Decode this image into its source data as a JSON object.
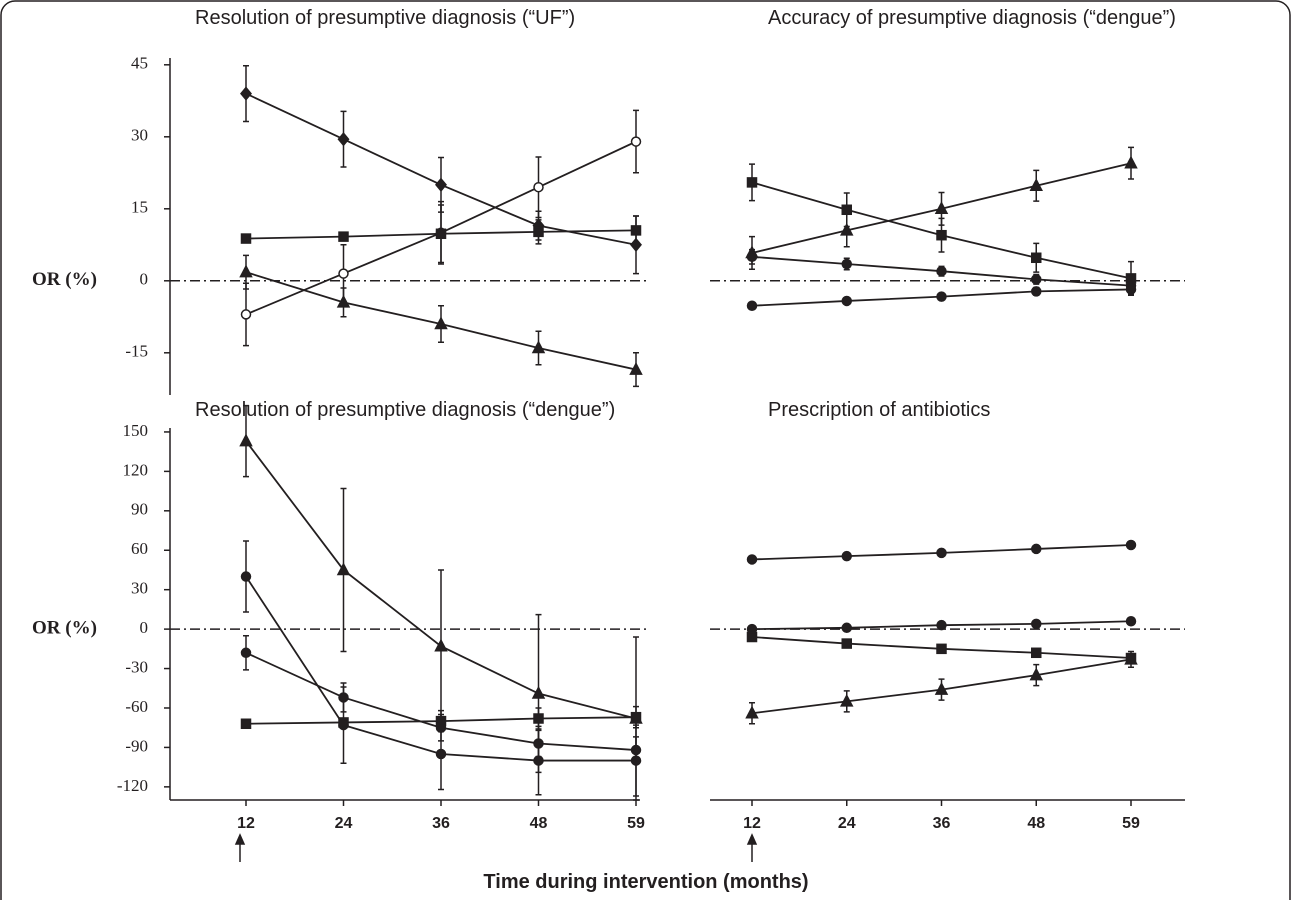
{
  "chart_data": [
    {
      "type": "line",
      "title": "Resolution of presumptive diagnosis (“UF”)",
      "ylabel": "OR (%)",
      "ylim": [
        -19,
        46
      ],
      "yticks": [
        -15,
        0,
        15,
        30,
        45
      ],
      "hline": 0,
      "series": [
        {
          "marker": "diamond",
          "color": "#231f20",
          "values": [
            39,
            29.5,
            20,
            11.5,
            7.5
          ],
          "errors": [
            5.8,
            5.8,
            5.7,
            3,
            6
          ]
        },
        {
          "marker": "circle-open",
          "color": "#231f20",
          "values": [
            -7,
            1.5,
            10,
            19.5,
            29
          ],
          "errors": [
            6.5,
            6,
            6.5,
            6.3,
            6.5
          ]
        },
        {
          "marker": "square",
          "color": "#231f20",
          "values": [
            8.8,
            9.2,
            9.8,
            10.2,
            10.5
          ],
          "errors": [
            0.5,
            0.5,
            6,
            2.5,
            3
          ]
        },
        {
          "marker": "triangle",
          "color": "#231f20",
          "values": [
            1.8,
            -4.5,
            -9,
            -14,
            -18.5
          ],
          "errors": [
            3.5,
            3,
            3.8,
            3.5,
            3.5
          ]
        }
      ]
    },
    {
      "type": "line",
      "title": "Accuracy of presumptive diagnosis (“dengue”)",
      "ylim": [
        -19,
        46
      ],
      "hline": 0,
      "series": [
        {
          "marker": "square",
          "color": "#231f20",
          "values": [
            20.5,
            14.8,
            9.5,
            4.8,
            0.5
          ],
          "errors": [
            3.8,
            3.5,
            3.5,
            3,
            3.5
          ]
        },
        {
          "marker": "triangle",
          "color": "#231f20",
          "values": [
            5.8,
            10.5,
            15,
            19.8,
            24.5
          ],
          "errors": [
            3.4,
            3.4,
            3.4,
            3.2,
            3.3
          ]
        },
        {
          "marker": "circle",
          "color": "#231f20",
          "values": [
            5,
            3.5,
            2,
            0.3,
            -1
          ],
          "errors": [
            1.5,
            1.2,
            1,
            1,
            1
          ]
        },
        {
          "marker": "circle",
          "color": "#231f20",
          "values": [
            -5.2,
            -4.2,
            -3.3,
            -2.2,
            -1.8
          ],
          "errors": [
            0.5,
            0.5,
            0.5,
            0.8,
            1
          ]
        }
      ]
    },
    {
      "type": "line",
      "title": "Resolution of presumptive diagnosis (“dengue”)",
      "ylabel": "OR (%)",
      "categories": [
        "12",
        "24",
        "36",
        "48",
        "59"
      ],
      "ylim": [
        -130,
        153
      ],
      "yticks": [
        -120,
        -90,
        -60,
        -30,
        0,
        30,
        60,
        90,
        120,
        150
      ],
      "hline": 0,
      "series": [
        {
          "marker": "triangle",
          "color": "#231f20",
          "values": [
            143,
            45,
            -13,
            -49,
            -68
          ],
          "errors": [
            27,
            62,
            58,
            60,
            62
          ]
        },
        {
          "marker": "circle",
          "color": "#231f20",
          "values": [
            40,
            -73,
            -95,
            -100,
            -100
          ],
          "errors": [
            27,
            29,
            27,
            26,
            27
          ]
        },
        {
          "marker": "circle",
          "color": "#231f20",
          "values": [
            -18,
            -52,
            -75,
            -87,
            -92
          ],
          "errors": [
            13,
            11,
            10,
            10,
            10
          ]
        },
        {
          "marker": "square",
          "color": "#231f20",
          "values": [
            -72,
            -71,
            -70,
            -68,
            -67
          ],
          "errors": [
            2,
            2,
            8,
            8,
            8
          ]
        }
      ]
    },
    {
      "type": "line",
      "title": "Prescription of  antibiotics",
      "categories": [
        "12",
        "24",
        "36",
        "48",
        "59"
      ],
      "ylim": [
        -130,
        153
      ],
      "hline": 0,
      "series": [
        {
          "marker": "circle",
          "color": "#231f20",
          "values": [
            53,
            55.5,
            58,
            61,
            64
          ],
          "errors": [
            1,
            1,
            1,
            1,
            1
          ]
        },
        {
          "marker": "circle",
          "color": "#231f20",
          "values": [
            0,
            1,
            3,
            4,
            6
          ],
          "errors": [
            1,
            1,
            1,
            1,
            1
          ]
        },
        {
          "marker": "square",
          "color": "#231f20",
          "values": [
            -6,
            -11,
            -15,
            -18,
            -22
          ],
          "errors": [
            2,
            2,
            2,
            2,
            3
          ]
        },
        {
          "marker": "triangle",
          "color": "#231f20",
          "values": [
            -64,
            -55,
            -46,
            -35,
            -23
          ],
          "errors": [
            8,
            8,
            8,
            8,
            6
          ]
        }
      ]
    }
  ],
  "xlabel": "Time during intervention (months)"
}
